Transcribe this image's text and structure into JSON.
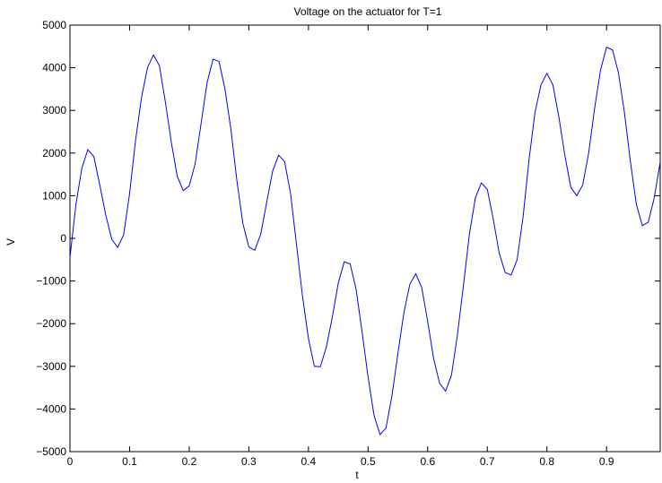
{
  "chart_data": {
    "type": "line",
    "title": "Voltage on the actuator for T=1",
    "xlabel": "t",
    "ylabel": "V",
    "xlim": [
      0,
      0.99
    ],
    "ylim": [
      -5000,
      5000
    ],
    "grid": false,
    "line_color": "#0000ff",
    "xticks": [
      0,
      0.1,
      0.2,
      0.3,
      0.4,
      0.5,
      0.6,
      0.7,
      0.8,
      0.9
    ],
    "xtick_labels": [
      "0",
      "0.1",
      "0.2",
      "0.3",
      "0.4",
      "0.5",
      "0.6",
      "0.7",
      "0.8",
      "0.9"
    ],
    "yticks": [
      -5000,
      -4000,
      -3000,
      -2000,
      -1000,
      0,
      1000,
      2000,
      3000,
      4000,
      5000
    ],
    "ytick_labels": [
      "−5000",
      "−4000",
      "−3000",
      "−2000",
      "−1000",
      "0",
      "1000",
      "2000",
      "3000",
      "4000",
      "5000"
    ],
    "series": [
      {
        "x": [
          0,
          0.01,
          0.02,
          0.03,
          0.04,
          0.05,
          0.06,
          0.07,
          0.08,
          0.09,
          0.1,
          0.11,
          0.12,
          0.13,
          0.14,
          0.15,
          0.16,
          0.17,
          0.18,
          0.19,
          0.2,
          0.21,
          0.22,
          0.23,
          0.24,
          0.25,
          0.26,
          0.27,
          0.28,
          0.29,
          0.3,
          0.31,
          0.32,
          0.33,
          0.34,
          0.35,
          0.36,
          0.37,
          0.38,
          0.39,
          0.4,
          0.41,
          0.42,
          0.43,
          0.44,
          0.45,
          0.46,
          0.47,
          0.48,
          0.49,
          0.5,
          0.51,
          0.52,
          0.53,
          0.54,
          0.55,
          0.56,
          0.57,
          0.58,
          0.59,
          0.6,
          0.61,
          0.62,
          0.63,
          0.64,
          0.65,
          0.66,
          0.67,
          0.68,
          0.69,
          0.7,
          0.71,
          0.72,
          0.73,
          0.74,
          0.75,
          0.76,
          0.77,
          0.78,
          0.79,
          0.8,
          0.81,
          0.82,
          0.83,
          0.84,
          0.85,
          0.86,
          0.87,
          0.88,
          0.89,
          0.9,
          0.91,
          0.92,
          0.93,
          0.94,
          0.95,
          0.96,
          0.97,
          0.98,
          0.99
        ],
        "y": [
          -450,
          800,
          1650,
          2080,
          1920,
          1250,
          550,
          -20,
          -210,
          80,
          1050,
          2300,
          3300,
          4000,
          4300,
          4050,
          3200,
          2250,
          1450,
          1120,
          1230,
          1750,
          2700,
          3650,
          4200,
          4150,
          3500,
          2550,
          1350,
          350,
          -200,
          -280,
          100,
          850,
          1580,
          1950,
          1800,
          1050,
          -150,
          -1350,
          -2350,
          -3000,
          -3010,
          -2550,
          -1850,
          -1050,
          -550,
          -600,
          -1200,
          -2200,
          -3250,
          -4150,
          -4600,
          -4450,
          -3700,
          -2700,
          -1750,
          -1080,
          -830,
          -1150,
          -1950,
          -2820,
          -3400,
          -3580,
          -3200,
          -2250,
          -1100,
          100,
          950,
          1300,
          1150,
          450,
          -350,
          -800,
          -860,
          -500,
          500,
          1850,
          2950,
          3600,
          3870,
          3600,
          2850,
          1950,
          1200,
          1000,
          1250,
          2000,
          3050,
          3950,
          4480,
          4420,
          3880,
          2950,
          1800,
          800,
          300,
          380,
          950,
          1790
        ]
      }
    ]
  }
}
